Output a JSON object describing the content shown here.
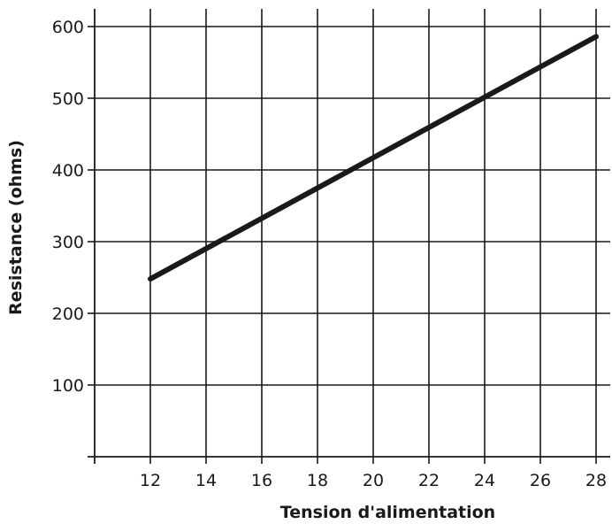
{
  "chart_data": {
    "type": "line",
    "title": "",
    "xlabel": "Tension d'alimentation",
    "ylabel": "Resistance (ohms)",
    "xlim": [
      10,
      28
    ],
    "ylim": [
      0,
      600
    ],
    "x_ticks": [
      12,
      14,
      16,
      18,
      20,
      22,
      24,
      26,
      28
    ],
    "x_tick_labels": [
      "12",
      "14",
      "16",
      "18",
      "20",
      "22",
      "24",
      "26",
      "28"
    ],
    "y_ticks": [
      100,
      200,
      300,
      400,
      500,
      600
    ],
    "y_tick_labels": [
      "100",
      "200",
      "300",
      "400",
      "500",
      "600"
    ],
    "grid": true,
    "legend": "none",
    "line_color": "#1a1a1a",
    "series": [
      {
        "x": [
          12,
          28
        ],
        "y": [
          248,
          586
        ]
      }
    ]
  }
}
